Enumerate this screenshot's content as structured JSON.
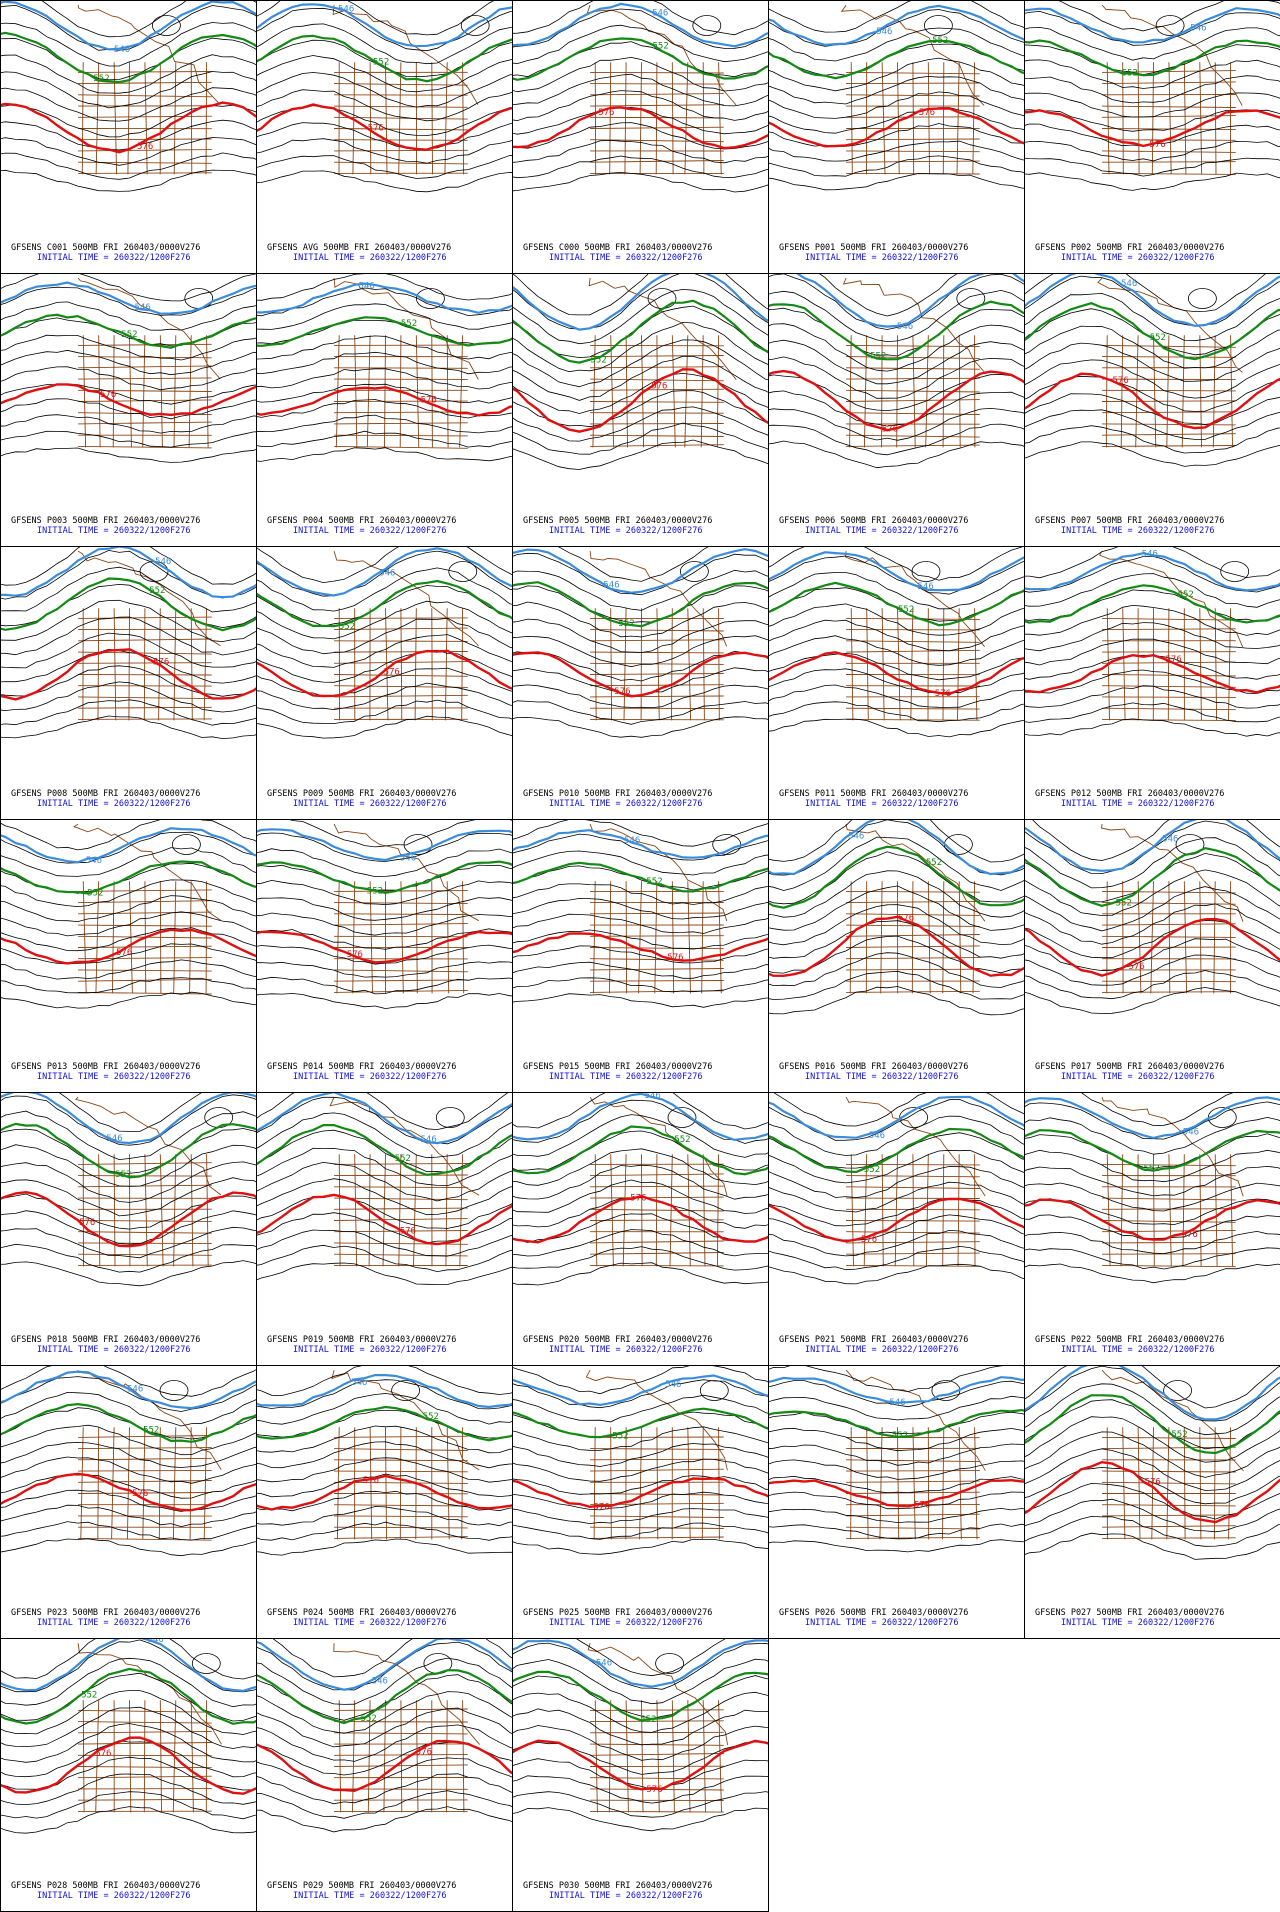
{
  "figure": {
    "colors": {
      "line_546": "#3b8ddc",
      "line_552": "#138a13",
      "line_576": "#e01010",
      "contour": "#000000",
      "geography": "#8b4513",
      "init_text": "#1010dd",
      "caption_text": "#000000"
    },
    "panels": [
      {
        "member": "C001",
        "title": "GFSENS C001 500MB FRI 260403/0000V276",
        "init": "INITIAL TIME = 260322/1200F276",
        "lbl546": "546",
        "lbl552": "552",
        "lbl576": "576"
      },
      {
        "member": "AVG",
        "title": "GFSENS AVG 500MB FRI 260403/0000V276",
        "init": "INITIAL TIME = 260322/1200F276",
        "lbl546": "546",
        "lbl552": "552",
        "lbl576": "576"
      },
      {
        "member": "C000",
        "title": "GFSENS C000 500MB FRI 260403/0000V276",
        "init": "INITIAL TIME = 260322/1200F276",
        "lbl546": "546",
        "lbl552": "552",
        "lbl576": "576"
      },
      {
        "member": "P001",
        "title": "GFSENS P001 500MB FRI 260403/0000V276",
        "init": "INITIAL TIME = 260322/1200F276",
        "lbl546": "546",
        "lbl552": "552",
        "lbl576": "576"
      },
      {
        "member": "P002",
        "title": "GFSENS P002 500MB FRI 260403/0000V276",
        "init": "INITIAL TIME = 260322/1200F276",
        "lbl546": "546",
        "lbl552": "552",
        "lbl576": "576"
      },
      {
        "member": "P003",
        "title": "GFSENS P003 500MB FRI 260403/0000V276",
        "init": "INITIAL TIME = 260322/1200F276",
        "lbl546": "546",
        "lbl552": "552",
        "lbl576": "576"
      },
      {
        "member": "P004",
        "title": "GFSENS P004 500MB FRI 260403/0000V276",
        "init": "INITIAL TIME = 260322/1200F276",
        "lbl546": "546",
        "lbl552": "552",
        "lbl576": "576"
      },
      {
        "member": "P005",
        "title": "GFSENS P005 500MB FRI 260403/0000V276",
        "init": "INITIAL TIME = 260322/1200F276",
        "lbl546": "546",
        "lbl552": "552",
        "lbl576": "576"
      },
      {
        "member": "P006",
        "title": "GFSENS P006 500MB FRI 260403/0000V276",
        "init": "INITIAL TIME = 260322/1200F276",
        "lbl546": "546",
        "lbl552": "552",
        "lbl576": "576"
      },
      {
        "member": "P007",
        "title": "GFSENS P007 500MB FRI 260403/0000V276",
        "init": "INITIAL TIME = 260322/1200F276",
        "lbl546": "546",
        "lbl552": "552",
        "lbl576": "576"
      },
      {
        "member": "P008",
        "title": "GFSENS P008 500MB FRI 260403/0000V276",
        "init": "INITIAL TIME = 260322/1200F276",
        "lbl546": "546",
        "lbl552": "552",
        "lbl576": "576"
      },
      {
        "member": "P009",
        "title": "GFSENS P009 500MB FRI 260403/0000V276",
        "init": "INITIAL TIME = 260322/1200F276",
        "lbl546": "546",
        "lbl552": "552",
        "lbl576": "576"
      },
      {
        "member": "P010",
        "title": "GFSENS P010 500MB FRI 260403/0000V276",
        "init": "INITIAL TIME = 260322/1200F276",
        "lbl546": "546",
        "lbl552": "552",
        "lbl576": "576"
      },
      {
        "member": "P011",
        "title": "GFSENS P011 500MB FRI 260403/0000V276",
        "init": "INITIAL TIME = 260322/1200F276",
        "lbl546": "546",
        "lbl552": "552",
        "lbl576": "576"
      },
      {
        "member": "P012",
        "title": "GFSENS P012 500MB FRI 260403/0000V276",
        "init": "INITIAL TIME = 260322/1200F276",
        "lbl546": "546",
        "lbl552": "552",
        "lbl576": "576"
      },
      {
        "member": "P013",
        "title": "GFSENS P013 500MB FRI 260403/0000V276",
        "init": "INITIAL TIME = 260322/1200F276",
        "lbl546": "546",
        "lbl552": "552",
        "lbl576": "576"
      },
      {
        "member": "P014",
        "title": "GFSENS P014 500MB FRI 260403/0000V276",
        "init": "INITIAL TIME = 260322/1200F276",
        "lbl546": "546",
        "lbl552": "552",
        "lbl576": "576"
      },
      {
        "member": "P015",
        "title": "GFSENS P015 500MB FRI 260403/0000V276",
        "init": "INITIAL TIME = 260322/1200F276",
        "lbl546": "546",
        "lbl552": "552",
        "lbl576": "576"
      },
      {
        "member": "P016",
        "title": "GFSENS P016 500MB FRI 260403/0000V276",
        "init": "INITIAL TIME = 260322/1200F276",
        "lbl546": "546",
        "lbl552": "552",
        "lbl576": "576"
      },
      {
        "member": "P017",
        "title": "GFSENS P017 500MB FRI 260403/0000V276",
        "init": "INITIAL TIME = 260322/1200F276",
        "lbl546": "546",
        "lbl552": "552",
        "lbl576": "576"
      },
      {
        "member": "P018",
        "title": "GFSENS P018 500MB FRI 260403/0000V276",
        "init": "INITIAL TIME = 260322/1200F276",
        "lbl546": "546",
        "lbl552": "552",
        "lbl576": "576"
      },
      {
        "member": "P019",
        "title": "GFSENS P019 500MB FRI 260403/0000V276",
        "init": "INITIAL TIME = 260322/1200F276",
        "lbl546": "546",
        "lbl552": "552",
        "lbl576": "576"
      },
      {
        "member": "P020",
        "title": "GFSENS P020 500MB FRI 260403/0000V276",
        "init": "INITIAL TIME = 260322/1200F276",
        "lbl546": "546",
        "lbl552": "552",
        "lbl576": "576"
      },
      {
        "member": "P021",
        "title": "GFSENS P021 500MB FRI 260403/0000V276",
        "init": "INITIAL TIME = 260322/1200F276",
        "lbl546": "546",
        "lbl552": "552",
        "lbl576": "576"
      },
      {
        "member": "P022",
        "title": "GFSENS P022 500MB FRI 260403/0000V276",
        "init": "INITIAL TIME = 260322/1200F276",
        "lbl546": "546",
        "lbl552": "552",
        "lbl576": "576"
      },
      {
        "member": "P023",
        "title": "GFSENS P023 500MB FRI 260403/0000V276",
        "init": "INITIAL TIME = 260322/1200F276",
        "lbl546": "546",
        "lbl552": "552",
        "lbl576": "576"
      },
      {
        "member": "P024",
        "title": "GFSENS P024 500MB FRI 260403/0000V276",
        "init": "INITIAL TIME = 260322/1200F276",
        "lbl546": "546",
        "lbl552": "552",
        "lbl576": "576"
      },
      {
        "member": "P025",
        "title": "GFSENS P025 500MB FRI 260403/0000V276",
        "init": "INITIAL TIME = 260322/1200F276",
        "lbl546": "546",
        "lbl552": "552",
        "lbl576": "576"
      },
      {
        "member": "P026",
        "title": "GFSENS P026 500MB FRI 260403/0000V276",
        "init": "INITIAL TIME = 260322/1200F276",
        "lbl546": "546",
        "lbl552": "552",
        "lbl576": "576"
      },
      {
        "member": "P027",
        "title": "GFSENS P027 500MB FRI 260403/0000V276",
        "init": "INITIAL TIME = 260322/1200F276",
        "lbl546": "546",
        "lbl552": "552",
        "lbl576": "576"
      },
      {
        "member": "P028",
        "title": "GFSENS P028 500MB FRI 260403/0000V276",
        "init": "INITIAL TIME = 260322/1200F276",
        "lbl546": "546",
        "lbl552": "552",
        "lbl576": "576"
      },
      {
        "member": "P029",
        "title": "GFSENS P029 500MB FRI 260403/0000V276",
        "init": "INITIAL TIME = 260322/1200F276",
        "lbl546": "546",
        "lbl552": "552",
        "lbl576": "576"
      },
      {
        "member": "P030",
        "title": "GFSENS P030 500MB FRI 260403/0000V276",
        "init": "INITIAL TIME = 260322/1200F276",
        "lbl546": "546",
        "lbl552": "552",
        "lbl576": "576"
      }
    ]
  }
}
